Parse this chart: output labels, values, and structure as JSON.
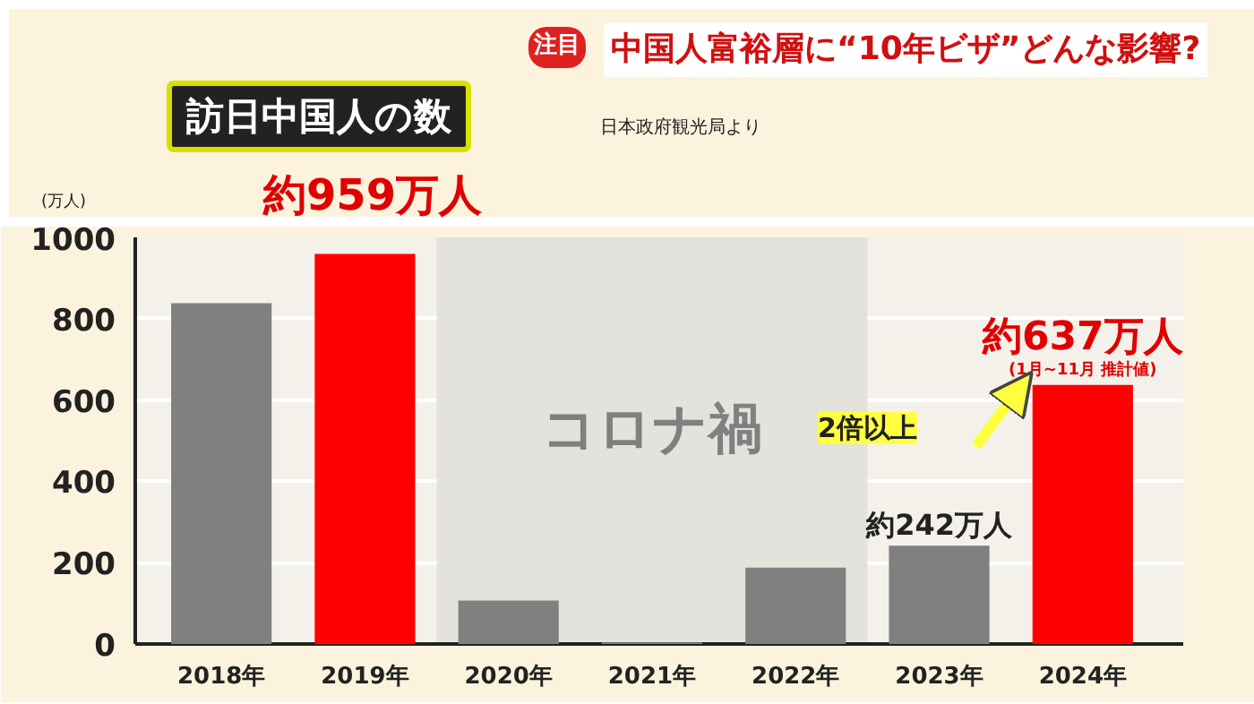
{
  "chart_data": {
    "type": "bar",
    "title": "訪日中国人の数",
    "subtitle": "中国人富裕層に“10年ビザ”どんな影響?",
    "ylabel": "(万人)",
    "categories": [
      "2018年",
      "2019年",
      "2020年",
      "2021年",
      "2022年",
      "2023年",
      "2024年"
    ],
    "values": [
      838,
      959,
      107,
      4,
      188,
      242,
      637
    ],
    "colors": [
      "#808080",
      "#ff0000",
      "#808080",
      "#808080",
      "#808080",
      "#808080",
      "#ff0000"
    ],
    "value_labels": [
      null,
      "約959万人",
      null,
      null,
      null,
      "約242万人",
      "約637万人"
    ],
    "ylim": [
      0,
      1000
    ],
    "yticks": [
      0,
      200,
      400,
      600,
      800,
      1000
    ],
    "grid": "y",
    "bands": [
      {
        "axis": "x",
        "from": "2020年",
        "to": "2022年",
        "label": "コロナ禍",
        "color": "#e4e2dc"
      }
    ],
    "annotations": [
      "注目",
      "日本政府観光局より",
      {
        "text": "(1月~11月 推計値)",
        "x": "2024年",
        "y": 637
      },
      "2倍以上"
    ]
  }
}
